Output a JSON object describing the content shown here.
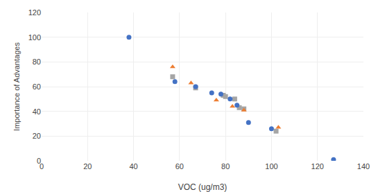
{
  "chart_data": {
    "type": "scatter",
    "xlabel": "VOC (ug/m3)",
    "ylabel": "Importance of Advantages",
    "xlim": [
      0,
      140
    ],
    "ylim": [
      0,
      120
    ],
    "xticks": [
      0,
      20,
      40,
      60,
      80,
      100,
      120,
      140
    ],
    "yticks": [
      0,
      20,
      40,
      60,
      80,
      100,
      120
    ],
    "grid": true,
    "series": [
      {
        "color": "#A5A5A5",
        "marker": "square",
        "x": [
          57,
          67,
          79,
          80,
          84,
          86,
          88,
          102
        ],
        "values": [
          68,
          59,
          53,
          52,
          50,
          43,
          42,
          24
        ]
      },
      {
        "color": "#ED7D31",
        "marker": "triangle-up",
        "x": [
          57,
          65,
          76,
          83,
          88,
          103
        ],
        "values": [
          76,
          63,
          49,
          44,
          41,
          27
        ]
      },
      {
        "color": "#4472C4",
        "marker": "circle",
        "x": [
          38,
          58,
          67,
          74,
          78,
          82,
          85,
          90,
          100,
          127
        ],
        "values": [
          100,
          64,
          60,
          55,
          54,
          50,
          45,
          31,
          26,
          1
        ]
      }
    ]
  }
}
